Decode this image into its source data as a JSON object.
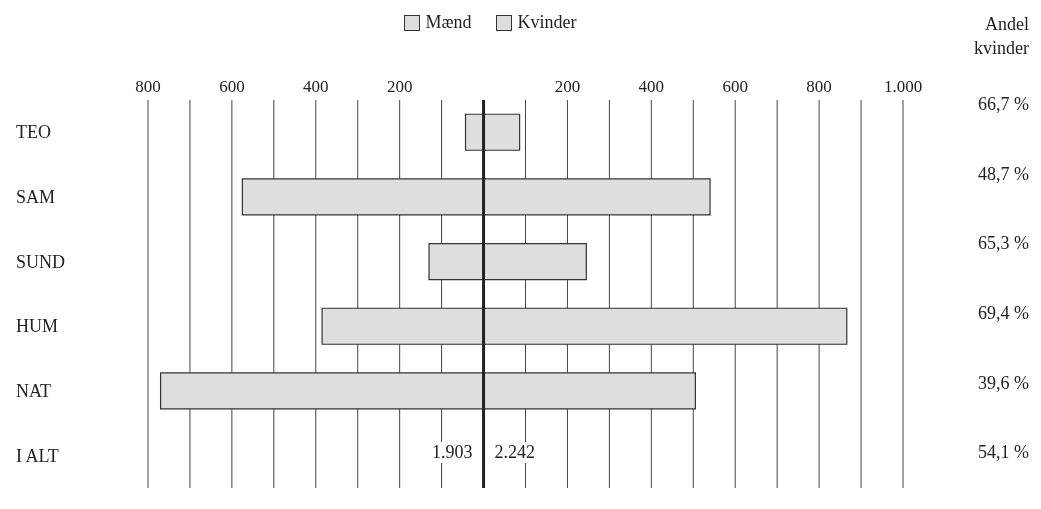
{
  "chart_data": {
    "type": "bar",
    "orientation": "horizontal",
    "stacked": true,
    "categories": [
      "TEO",
      "SAM",
      "SUND",
      "HUM",
      "NAT",
      "I ALT"
    ],
    "series": [
      {
        "name": "Mænd",
        "color": "#dedede",
        "values": [
          -43,
          -575,
          -130,
          -385,
          -770,
          null
        ]
      },
      {
        "name": "Kvinder",
        "color": "#dedede",
        "values": [
          86,
          540,
          245,
          866,
          505,
          null
        ]
      }
    ],
    "xlim": [
      -800,
      1000
    ],
    "xticks": [
      {
        "value": -800,
        "label": "800"
      },
      {
        "value": -700,
        "label": null
      },
      {
        "value": -600,
        "label": "600"
      },
      {
        "value": -500,
        "label": null
      },
      {
        "value": -400,
        "label": "400"
      },
      {
        "value": -300,
        "label": null
      },
      {
        "value": -200,
        "label": "200"
      },
      {
        "value": -100,
        "label": null
      },
      {
        "value": 0,
        "label": null
      },
      {
        "value": 100,
        "label": null
      },
      {
        "value": 200,
        "label": "200"
      },
      {
        "value": 300,
        "label": null
      },
      {
        "value": 400,
        "label": "400"
      },
      {
        "value": 500,
        "label": null
      },
      {
        "value": 600,
        "label": "600"
      },
      {
        "value": 700,
        "label": null
      },
      {
        "value": 800,
        "label": "800"
      },
      {
        "value": 900,
        "label": null
      },
      {
        "value": 1000,
        "label": "1.000"
      }
    ],
    "grid": "x",
    "legend": "top",
    "ref_lines": [
      {
        "axis": "x",
        "value": 0,
        "color": "#222222"
      }
    ],
    "annotations": [
      "Andel kvinder",
      "66,7 %",
      "48,7 %",
      "65,3 %",
      "69,4 %",
      "39,6 %",
      "54,1 %",
      "1.903",
      "2.242"
    ]
  }
}
